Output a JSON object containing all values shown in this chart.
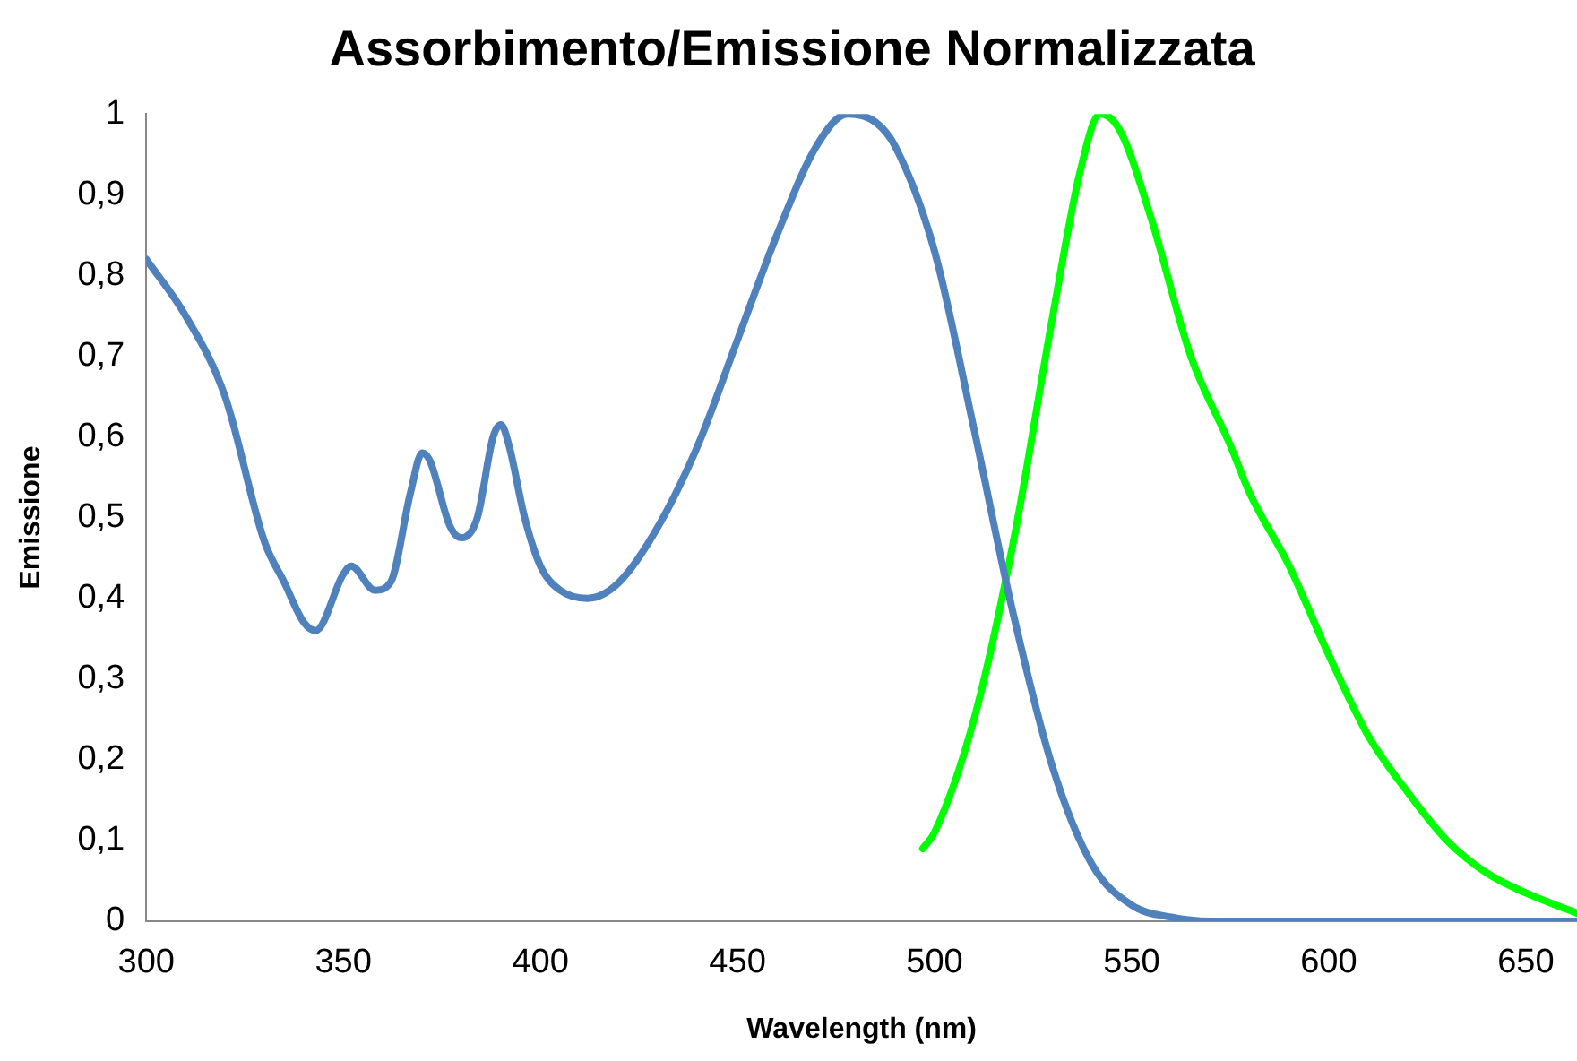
{
  "chart_data": {
    "type": "line",
    "title": "Assorbimento/Emissione Normalizzata",
    "xlabel": "Wavelength (nm)",
    "ylabel": "Emissione",
    "xlim": [
      300,
      663
    ],
    "xticks": [
      300,
      350,
      400,
      450,
      500,
      550,
      600,
      650
    ],
    "ylim": [
      0,
      1
    ],
    "yticks": [
      0,
      {
        "value": 0.1,
        "label": "0,1"
      },
      {
        "value": 0.2,
        "label": "0,2"
      },
      {
        "value": 0.3,
        "label": "0,3"
      },
      {
        "value": 0.4,
        "label": "0,4"
      },
      {
        "value": 0.5,
        "label": "0,5"
      },
      {
        "value": 0.6,
        "label": "0,6"
      },
      {
        "value": 0.7,
        "label": "0,7"
      },
      {
        "value": 0.8,
        "label": "0,8"
      },
      {
        "value": 0.9,
        "label": "0,9"
      },
      1
    ],
    "grid": false,
    "legend": false,
    "marker": "none",
    "line_style": "solid",
    "series": [
      {
        "color": "#4f81bd",
        "x": [
          300,
          310,
          320,
          330,
          335,
          340,
          343,
          350,
          352,
          358,
          362,
          367,
          370,
          372,
          377,
          380,
          384,
          388,
          390,
          392,
          396,
          400,
          405,
          412,
          420,
          430,
          440,
          450,
          460,
          470,
          478,
          485,
          490,
          500,
          510,
          520,
          530,
          540,
          550,
          560,
          570,
          600,
          663
        ],
        "values": [
          0.82,
          0.75,
          0.65,
          0.47,
          0.42,
          0.37,
          0.36,
          0.43,
          0.44,
          0.41,
          0.42,
          0.53,
          0.58,
          0.57,
          0.49,
          0.475,
          0.5,
          0.6,
          0.615,
          0.59,
          0.5,
          0.44,
          0.41,
          0.4,
          0.42,
          0.49,
          0.59,
          0.72,
          0.85,
          0.96,
          1,
          0.99,
          0.96,
          0.83,
          0.61,
          0.38,
          0.19,
          0.07,
          0.02,
          0.005,
          0,
          0,
          0
        ]
      },
      {
        "color": "#00ff00",
        "x": [
          497,
          500,
          510,
          520,
          530,
          537,
          542,
          547,
          555,
          565,
          575,
          580,
          590,
          600,
          610,
          620,
          630,
          640,
          650,
          663
        ],
        "values": [
          0.09,
          0.11,
          0.25,
          0.47,
          0.75,
          0.93,
          1,
          0.98,
          0.87,
          0.7,
          0.59,
          0.53,
          0.44,
          0.33,
          0.23,
          0.16,
          0.1,
          0.06,
          0.035,
          0.01
        ]
      }
    ]
  }
}
